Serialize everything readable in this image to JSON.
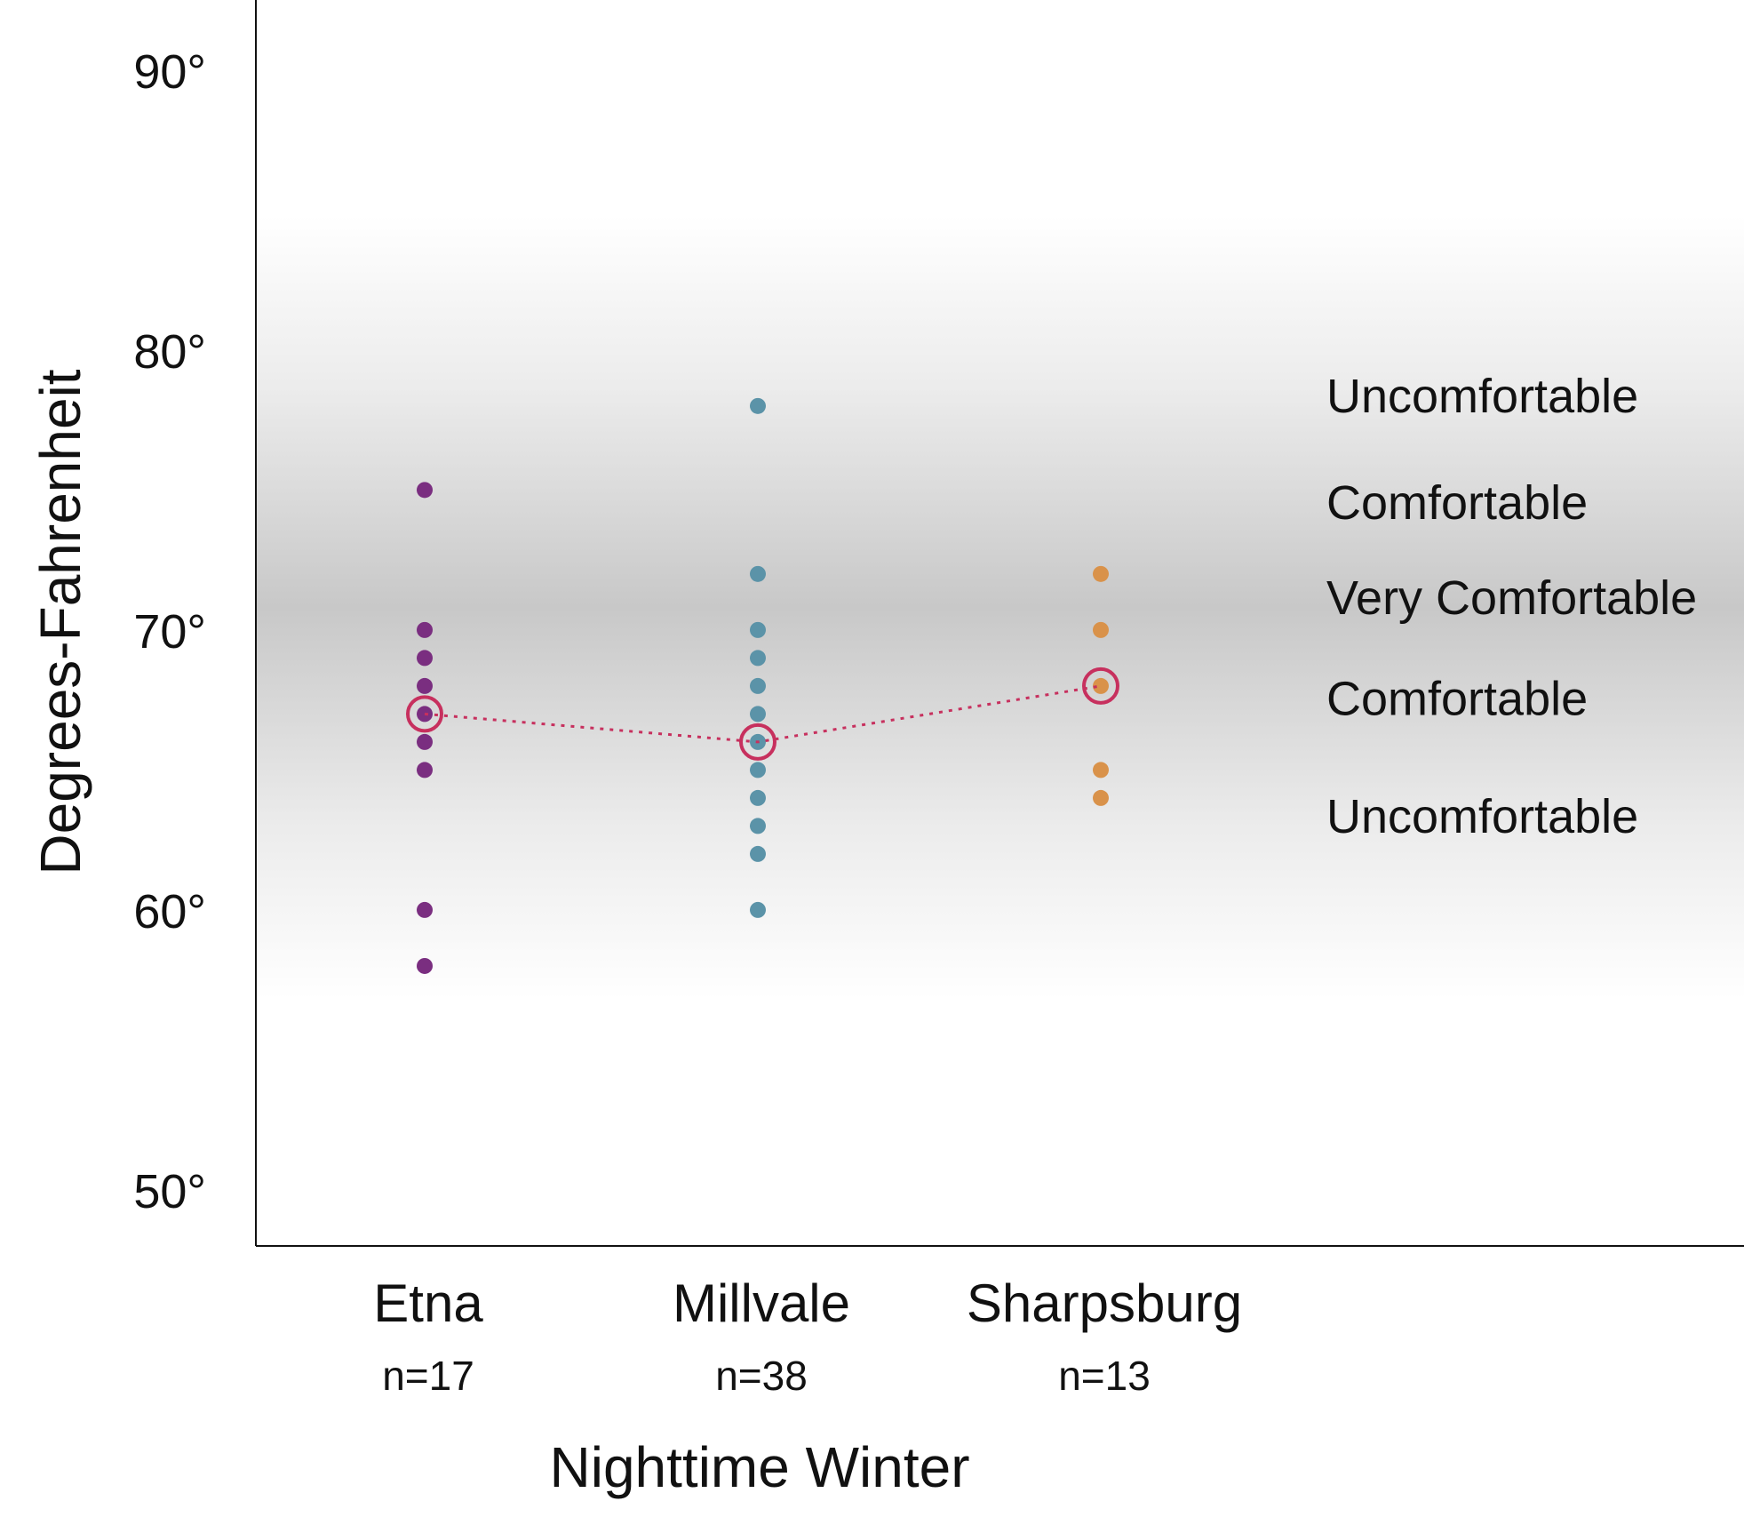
{
  "chart_data": {
    "type": "scatter",
    "xlabel": "Nighttime Winter",
    "ylabel": "Degrees-Fahrenheit",
    "ylim": [
      48,
      92.5
    ],
    "yticks": [
      {
        "value": 50,
        "label": "50°"
      },
      {
        "value": 60,
        "label": "60°"
      },
      {
        "value": 70,
        "label": "70°"
      },
      {
        "value": 80,
        "label": "80°"
      },
      {
        "value": 90,
        "label": "90°"
      }
    ],
    "grid": false,
    "categories": [
      {
        "name": "Etna",
        "n_label": "n=17",
        "color": "#7a2e80",
        "values": [
          75,
          70,
          69,
          68,
          67,
          66,
          65,
          60,
          58
        ],
        "mean": 67
      },
      {
        "name": "Millvale",
        "n_label": "n=38",
        "color": "#5b93a8",
        "values": [
          78,
          72,
          70,
          69,
          68,
          67,
          66,
          65,
          64,
          63,
          62,
          60
        ],
        "mean": 66
      },
      {
        "name": "Sharpsburg",
        "n_label": "n=13",
        "color": "#d9924a",
        "values": [
          72,
          70,
          68,
          65,
          64
        ],
        "mean": 68
      }
    ],
    "mean_line_color": "#c7305e",
    "comfort_zone": {
      "center": 70.8,
      "color": "#c8c8c8",
      "labels": [
        {
          "text": "Uncomfortable",
          "value": 78.4
        },
        {
          "text": "Comfortable",
          "value": 74.6
        },
        {
          "text": "Very Comfortable",
          "value": 71.2
        },
        {
          "text": "Comfortable",
          "value": 67.6
        },
        {
          "text": "Uncomfortable",
          "value": 63.4
        }
      ]
    }
  }
}
